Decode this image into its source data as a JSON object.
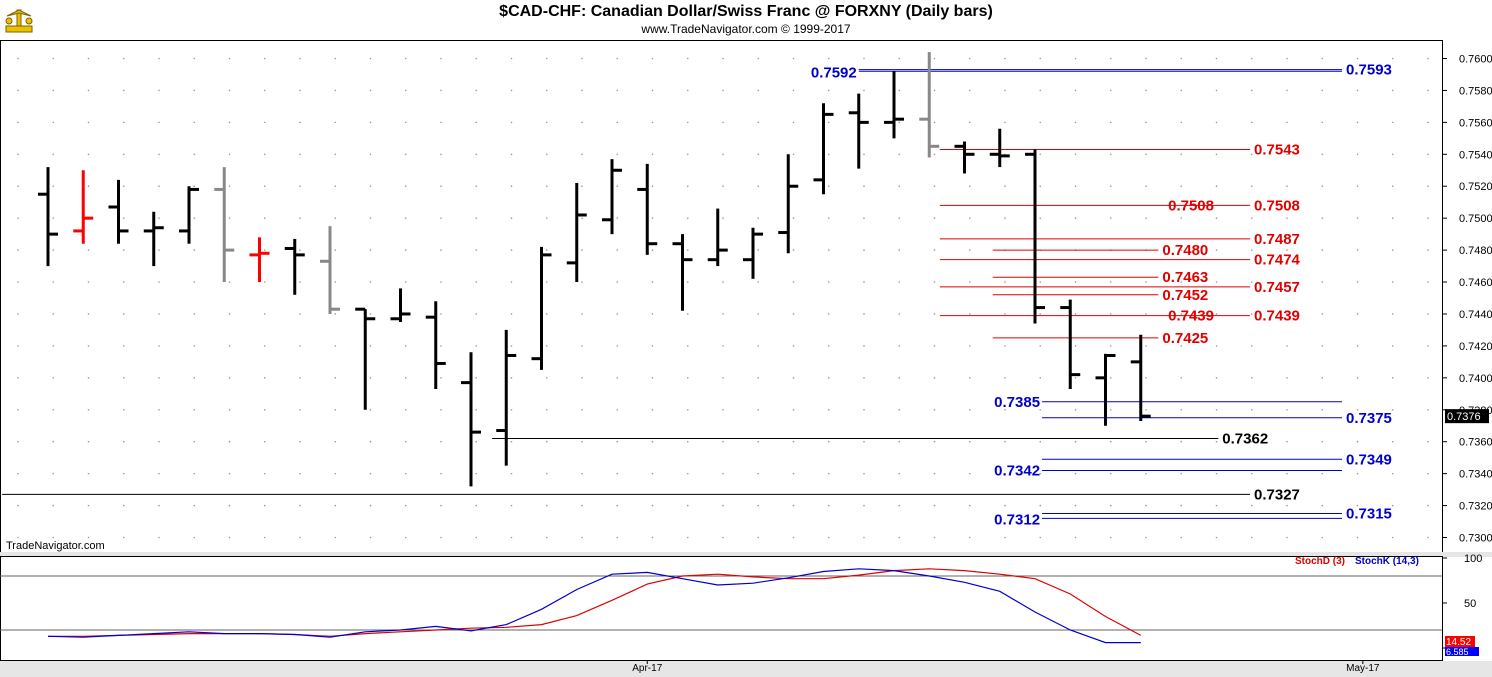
{
  "header": {
    "title": "$CAD-CHF:  Canadian Dollar/Swiss Franc @ FORXNY  (Daily bars)",
    "subtitle": "www.TradeNavigator.com © 1999-2017",
    "watermark": "TradeNavigator.com",
    "logo_icon": "trade-navigator-trophy-icon"
  },
  "colors": {
    "bar_black": "#000000",
    "bar_gray": "#888888",
    "bar_red": "#ff0000",
    "level_blue": "#0000cc",
    "level_red": "#e00000",
    "level_black": "#000000",
    "stoch_d": "#e00000",
    "stoch_k": "#0000cc",
    "price_tag_bg": "#000000",
    "stoch_tag_red": "#ff0000",
    "stoch_tag_blue": "#0000ff"
  },
  "chart_data": [
    {
      "type": "ohlc",
      "yaxis_side": "right",
      "ylim": [
        0.729,
        0.7605
      ],
      "ytick_labels": [
        "0.7600",
        "0.7580",
        "0.7560",
        "0.7540",
        "0.7520",
        "0.7500",
        "0.7480",
        "0.7460",
        "0.7440",
        "0.7420",
        "0.7400",
        "0.7380",
        "0.7360",
        "0.7340",
        "0.7320",
        "0.7300"
      ],
      "yticks": [
        0.76,
        0.758,
        0.756,
        0.754,
        0.752,
        0.75,
        0.748,
        0.746,
        0.744,
        0.742,
        0.74,
        0.738,
        0.736,
        0.734,
        0.732,
        0.73
      ],
      "x_labels": [
        {
          "label": "Apr-17",
          "index": 17
        },
        {
          "label": "May-17",
          "index": 37.3
        }
      ],
      "last_price": "0.7376",
      "bars": [
        {
          "o": 0.7515,
          "h": 0.7532,
          "l": 0.747,
          "c": 0.749,
          "color": "black"
        },
        {
          "o": 0.7492,
          "h": 0.753,
          "l": 0.7484,
          "c": 0.75,
          "color": "red"
        },
        {
          "o": 0.7507,
          "h": 0.7524,
          "l": 0.7484,
          "c": 0.7492,
          "color": "black"
        },
        {
          "o": 0.7492,
          "h": 0.7504,
          "l": 0.747,
          "c": 0.7494,
          "color": "black"
        },
        {
          "o": 0.7492,
          "h": 0.752,
          "l": 0.7484,
          "c": 0.7518,
          "color": "black"
        },
        {
          "o": 0.7518,
          "h": 0.7532,
          "l": 0.746,
          "c": 0.748,
          "color": "gray"
        },
        {
          "o": 0.7477,
          "h": 0.7488,
          "l": 0.746,
          "c": 0.7478,
          "color": "red"
        },
        {
          "o": 0.7481,
          "h": 0.7487,
          "l": 0.7452,
          "c": 0.7477,
          "color": "black"
        },
        {
          "o": 0.7473,
          "h": 0.7495,
          "l": 0.744,
          "c": 0.7443,
          "color": "gray"
        },
        {
          "o": 0.7443,
          "h": 0.7443,
          "l": 0.738,
          "c": 0.7437,
          "color": "black"
        },
        {
          "o": 0.7437,
          "h": 0.7456,
          "l": 0.7435,
          "c": 0.744,
          "color": "black"
        },
        {
          "o": 0.7438,
          "h": 0.7448,
          "l": 0.7393,
          "c": 0.7409,
          "color": "black"
        },
        {
          "o": 0.7397,
          "h": 0.7416,
          "l": 0.7332,
          "c": 0.7366,
          "color": "black"
        },
        {
          "o": 0.7367,
          "h": 0.743,
          "l": 0.7345,
          "c": 0.7414,
          "color": "black"
        },
        {
          "o": 0.7412,
          "h": 0.7482,
          "l": 0.7405,
          "c": 0.7477,
          "color": "black"
        },
        {
          "o": 0.7472,
          "h": 0.7522,
          "l": 0.746,
          "c": 0.7502,
          "color": "black"
        },
        {
          "o": 0.7499,
          "h": 0.7537,
          "l": 0.749,
          "c": 0.753,
          "color": "black"
        },
        {
          "o": 0.7518,
          "h": 0.7534,
          "l": 0.7477,
          "c": 0.7484,
          "color": "black"
        },
        {
          "o": 0.7484,
          "h": 0.749,
          "l": 0.7442,
          "c": 0.7474,
          "color": "black"
        },
        {
          "o": 0.7474,
          "h": 0.7506,
          "l": 0.747,
          "c": 0.748,
          "color": "black"
        },
        {
          "o": 0.7474,
          "h": 0.7494,
          "l": 0.7462,
          "c": 0.749,
          "color": "black"
        },
        {
          "o": 0.7491,
          "h": 0.754,
          "l": 0.7478,
          "c": 0.752,
          "color": "black"
        },
        {
          "o": 0.7524,
          "h": 0.7572,
          "l": 0.7515,
          "c": 0.7565,
          "color": "black"
        },
        {
          "o": 0.7566,
          "h": 0.7578,
          "l": 0.7531,
          "c": 0.756,
          "color": "black"
        },
        {
          "o": 0.756,
          "h": 0.7592,
          "l": 0.755,
          "c": 0.7562,
          "color": "black"
        },
        {
          "o": 0.7562,
          "h": 0.7604,
          "l": 0.7538,
          "c": 0.7545,
          "color": "gray"
        },
        {
          "o": 0.7545,
          "h": 0.7548,
          "l": 0.7528,
          "c": 0.754,
          "color": "black"
        },
        {
          "o": 0.754,
          "h": 0.7556,
          "l": 0.7532,
          "c": 0.7539,
          "color": "black"
        },
        {
          "o": 0.754,
          "h": 0.7543,
          "l": 0.7434,
          "c": 0.7444,
          "color": "black"
        },
        {
          "o": 0.7444,
          "h": 0.7449,
          "l": 0.7393,
          "c": 0.7402,
          "color": "black"
        },
        {
          "o": 0.74,
          "h": 0.7415,
          "l": 0.737,
          "c": 0.7414,
          "color": "black"
        },
        {
          "o": 0.741,
          "h": 0.7427,
          "l": 0.7373,
          "c": 0.7376,
          "color": "black"
        }
      ],
      "levels": [
        {
          "id": "blue-7593",
          "value": 0.7593,
          "label": "0.7593",
          "color": "blue",
          "from": 23,
          "to": "edge",
          "label_at": "right",
          "second_line": 0.7592,
          "second_label": "0.7592"
        },
        {
          "id": "red-7543",
          "value": 0.7543,
          "label": "0.7543",
          "color": "red",
          "from": 25.3,
          "to": 34.1,
          "label_at": "end"
        },
        {
          "id": "red-7508",
          "value": 0.7508,
          "label": "0.7508",
          "color": "red",
          "from": 25.3,
          "to": 34.1,
          "label_at": "end",
          "mid_label": "0.7508"
        },
        {
          "id": "red-7487",
          "value": 0.7487,
          "label": "0.7487",
          "color": "red",
          "from": 25.3,
          "to": 34.1,
          "label_at": "end"
        },
        {
          "id": "red-7480",
          "value": 0.748,
          "label": "0.7480",
          "color": "red",
          "from": 26.8,
          "to": 31.5,
          "label_at": "end"
        },
        {
          "id": "red-7474",
          "value": 0.7474,
          "label": "0.7474",
          "color": "red",
          "from": 25.3,
          "to": 34.1,
          "label_at": "end"
        },
        {
          "id": "red-7463",
          "value": 0.7463,
          "label": "0.7463",
          "color": "red",
          "from": 26.8,
          "to": 31.5,
          "label_at": "end"
        },
        {
          "id": "red-7457",
          "value": 0.7457,
          "label": "0.7457",
          "color": "red",
          "from": 25.3,
          "to": 34.1,
          "label_at": "end"
        },
        {
          "id": "red-7452",
          "value": 0.7452,
          "label": "0.7452",
          "color": "red",
          "from": 26.8,
          "to": 31.5,
          "label_at": "end"
        },
        {
          "id": "red-7439",
          "value": 0.7439,
          "label": "0.7439",
          "color": "red",
          "from": 25.3,
          "to": 34.1,
          "label_at": "end",
          "mid_label": "0.7439"
        },
        {
          "id": "red-7425",
          "value": 0.7425,
          "label": "0.7425",
          "color": "red",
          "from": 26.8,
          "to": 31.5,
          "label_at": "end"
        },
        {
          "id": "blue-7385",
          "value": 0.7385,
          "label": "0.7385",
          "color": "blue",
          "from": 28.2,
          "to": "edge",
          "label_at": "left"
        },
        {
          "id": "blue-7375",
          "value": 0.7375,
          "label": "0.7375",
          "color": "blue",
          "from": 28.2,
          "to": "edge",
          "label_at": "right"
        },
        {
          "id": "black-7362",
          "value": 0.7362,
          "label": "0.7362",
          "color": "black",
          "from": 12.6,
          "to": 33.2,
          "label_at": "end"
        },
        {
          "id": "blue-7349",
          "value": 0.7349,
          "label": "0.7349",
          "color": "blue",
          "from": 28.2,
          "to": "edge",
          "label_at": "right"
        },
        {
          "id": "blue-7342",
          "value": 0.7342,
          "label": "0.7342",
          "color": "blue",
          "from": 28.2,
          "to": "edge",
          "label_at": "left"
        },
        {
          "id": "black-7327",
          "value": 0.7327,
          "label": "0.7327",
          "color": "black",
          "from": -1.3,
          "to": 34.1,
          "label_at": "end"
        },
        {
          "id": "blue-7315",
          "value": 0.7315,
          "label": "0.7315",
          "color": "blue",
          "from": 28.2,
          "to": "edge",
          "label_at": "right",
          "second_line": 0.7312,
          "second_label": "0.7312",
          "second_label_at": "left"
        }
      ]
    },
    {
      "type": "line",
      "ylim": [
        0,
        100
      ],
      "yticks": [
        0,
        50,
        100
      ],
      "ytick_labels": [
        "0",
        "50",
        "100"
      ],
      "reference_lines": [
        80,
        20
      ],
      "series": [
        {
          "name": "StochD (3)",
          "color": "red",
          "last": "14.52",
          "values": [
            13,
            13,
            14,
            15,
            16,
            16,
            16,
            15,
            13,
            16,
            18,
            20,
            22,
            23,
            26,
            36,
            53,
            71,
            80,
            82,
            79,
            77,
            77,
            81,
            86,
            88,
            86,
            82,
            77,
            60,
            35,
            14
          ]
        },
        {
          "name": "StochK (14,3)",
          "color": "blue",
          "last": "6.585",
          "values": [
            13,
            12,
            14,
            16,
            18,
            16,
            16,
            15,
            12,
            18,
            20,
            24,
            19,
            26,
            43,
            65,
            82,
            84,
            77,
            70,
            72,
            78,
            85,
            88,
            86,
            80,
            73,
            63,
            40,
            20,
            6,
            6
          ]
        }
      ]
    }
  ]
}
